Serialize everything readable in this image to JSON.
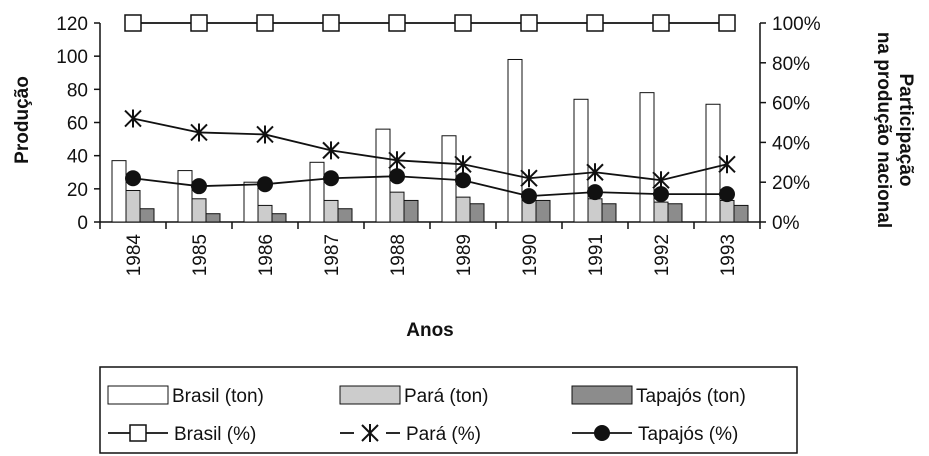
{
  "chart_data": {
    "type": "bar",
    "categories": [
      "1984",
      "1985",
      "1986",
      "1987",
      "1988",
      "1989",
      "1990",
      "1991",
      "1992",
      "1993"
    ],
    "xlabel": "Anos",
    "ylabel": "Produção",
    "ylabel_right": "Participação na produção nacional",
    "ylim": [
      0,
      120
    ],
    "ylim_right": [
      0,
      100
    ],
    "yticks": [
      "0",
      "20",
      "40",
      "60",
      "80",
      "100",
      "120"
    ],
    "yticks_right": [
      "0%",
      "20%",
      "40%",
      "60%",
      "80%",
      "100%"
    ],
    "grid": false,
    "legend_position": "bottom",
    "bar_series": [
      {
        "name": "Brasil (ton)",
        "color": "#ffffff",
        "values": [
          37,
          31,
          24,
          36,
          56,
          52,
          98,
          74,
          78,
          71
        ]
      },
      {
        "name": "Pará (ton)",
        "color": "#cccccc",
        "values": [
          19,
          14,
          10,
          13,
          18,
          15,
          13,
          14,
          12,
          13
        ]
      },
      {
        "name": "Tapajós (ton)",
        "color": "#8c8c8c",
        "values": [
          8,
          5,
          5,
          8,
          13,
          11,
          13,
          11,
          11,
          10
        ]
      }
    ],
    "line_series": [
      {
        "name": "Brasil (%)",
        "marker": "square",
        "axis": "right",
        "values": [
          100,
          100,
          100,
          100,
          100,
          100,
          100,
          100,
          100,
          100
        ]
      },
      {
        "name": "Pará (%)",
        "marker": "asterisk",
        "axis": "right",
        "values": [
          52,
          45,
          44,
          36,
          31,
          29,
          22,
          25,
          21,
          29
        ]
      },
      {
        "name": "Tapajós (%)",
        "marker": "circle",
        "axis": "right",
        "values": [
          22,
          18,
          19,
          22,
          23,
          21,
          13,
          15,
          14,
          14
        ]
      }
    ]
  }
}
